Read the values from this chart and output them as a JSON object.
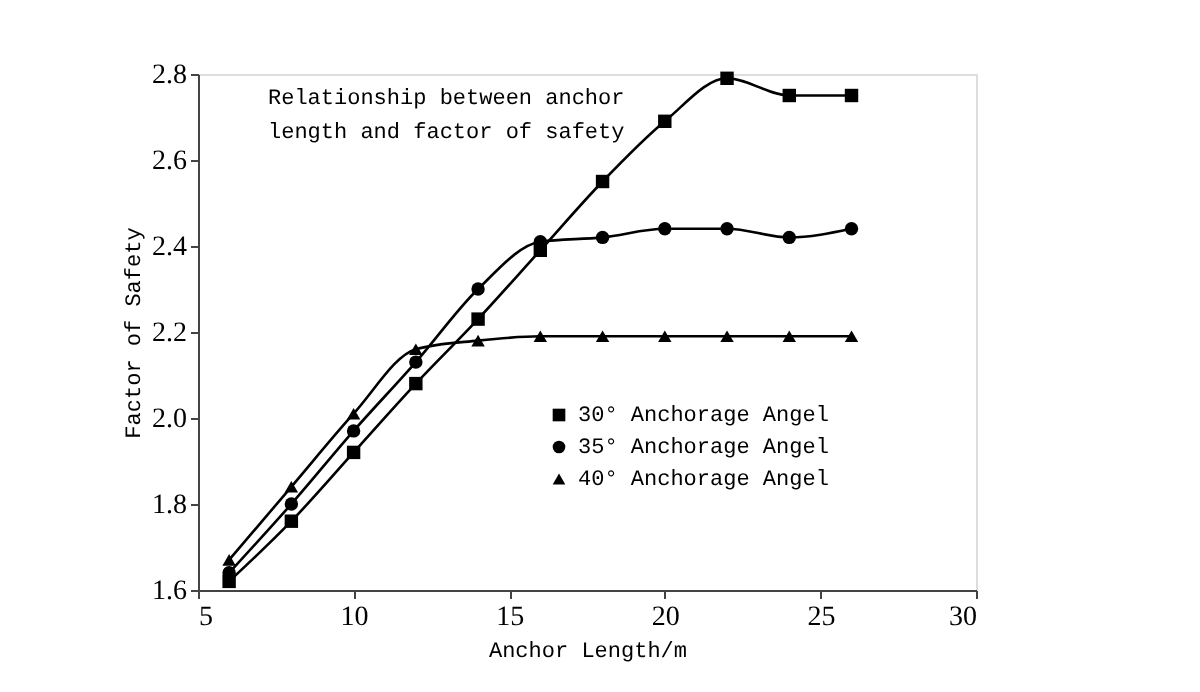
{
  "chart_data": {
    "type": "line",
    "title": "Relationship between anchor\nlength and factor of safety",
    "xlabel": "Anchor Length/m",
    "ylabel": "Factor of Safety",
    "x": [
      6,
      8,
      10,
      12,
      14,
      16,
      18,
      20,
      22,
      24,
      26
    ],
    "series": [
      {
        "name": "30°   Anchorage Angel",
        "color": "#000000",
        "marker": "square",
        "values": [
          1.62,
          1.76,
          1.92,
          2.08,
          2.23,
          2.39,
          2.55,
          2.69,
          2.79,
          2.75,
          2.75
        ]
      },
      {
        "name": "35°   Anchorage Angel",
        "color": "#000000",
        "marker": "circle",
        "values": [
          1.64,
          1.8,
          1.97,
          2.13,
          2.3,
          2.41,
          2.42,
          2.44,
          2.44,
          2.42,
          2.44
        ]
      },
      {
        "name": "40°   Anchorage Angel",
        "color": "#000000",
        "marker": "triangle",
        "values": [
          1.67,
          1.84,
          2.01,
          2.16,
          2.18,
          2.19,
          2.19,
          2.19,
          2.19,
          2.19,
          2.19
        ]
      }
    ],
    "xlim": [
      5,
      30
    ],
    "xticks": [
      5,
      10,
      15,
      20,
      25,
      30
    ],
    "ylim": [
      1.6,
      2.8
    ],
    "yticks": [
      1.6,
      1.8,
      {
        "value": 2.0,
        "label": "2.0"
      },
      2.2,
      2.4,
      2.6,
      2.8
    ],
    "grid": false,
    "legend": "bottom",
    "line_style": "solid"
  }
}
